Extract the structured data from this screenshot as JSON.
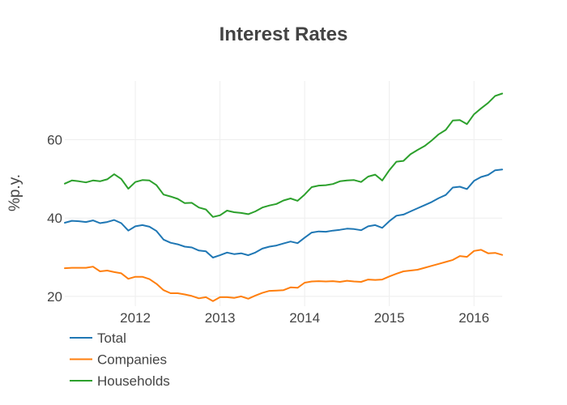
{
  "chart_data": {
    "type": "line",
    "title": "Interest Rates",
    "xlabel": "",
    "ylabel": "%p.y.",
    "x_tick_labels": [
      "2012",
      "2013",
      "2014",
      "2015",
      "2016"
    ],
    "y_tick_labels": [
      "20",
      "40",
      "60"
    ],
    "y_ticks": [
      20,
      40,
      60
    ],
    "ylim": [
      17.5,
      75
    ],
    "xlim": [
      "2011-03-01",
      "2016-05-01"
    ],
    "grid": true,
    "legend_position": "bottom-left",
    "x": [
      "2011-03",
      "2011-04",
      "2011-05",
      "2011-06",
      "2011-07",
      "2011-08",
      "2011-09",
      "2011-10",
      "2011-11",
      "2011-12",
      "2012-01",
      "2012-02",
      "2012-03",
      "2012-04",
      "2012-05",
      "2012-06",
      "2012-07",
      "2012-08",
      "2012-09",
      "2012-10",
      "2012-11",
      "2012-12",
      "2013-01",
      "2013-02",
      "2013-03",
      "2013-04",
      "2013-05",
      "2013-06",
      "2013-07",
      "2013-08",
      "2013-09",
      "2013-10",
      "2013-11",
      "2013-12",
      "2014-01",
      "2014-02",
      "2014-03",
      "2014-04",
      "2014-05",
      "2014-06",
      "2014-07",
      "2014-08",
      "2014-09",
      "2014-10",
      "2014-11",
      "2014-12",
      "2015-01",
      "2015-02",
      "2015-03",
      "2015-04",
      "2015-05",
      "2015-06",
      "2015-07",
      "2015-08",
      "2015-09",
      "2015-10",
      "2015-11",
      "2015-12",
      "2016-01",
      "2016-02",
      "2016-03",
      "2016-04",
      "2016-05"
    ],
    "series": [
      {
        "name": "Total",
        "color": "#1f77b4",
        "values": [
          38.8,
          39.3,
          39.2,
          39.0,
          39.4,
          38.7,
          39.0,
          39.5,
          38.7,
          36.8,
          37.9,
          38.2,
          37.8,
          36.7,
          34.5,
          33.7,
          33.3,
          32.7,
          32.5,
          31.7,
          31.5,
          29.9,
          30.5,
          31.2,
          30.8,
          31.0,
          30.5,
          31.2,
          32.2,
          32.7,
          33.0,
          33.5,
          34.0,
          33.6,
          35.0,
          36.3,
          36.6,
          36.5,
          36.8,
          37.0,
          37.3,
          37.2,
          36.9,
          37.9,
          38.2,
          37.5,
          39.2,
          40.6,
          40.9,
          41.7,
          42.5,
          43.3,
          44.1,
          45.1,
          45.9,
          47.8,
          48.0,
          47.4,
          49.5,
          50.5,
          51.0,
          52.2,
          52.4
        ]
      },
      {
        "name": "Companies",
        "color": "#ff7f0e",
        "values": [
          27.2,
          27.3,
          27.3,
          27.3,
          27.6,
          26.4,
          26.6,
          26.2,
          25.9,
          24.5,
          25.0,
          25.0,
          24.4,
          23.2,
          21.6,
          20.8,
          20.8,
          20.5,
          20.1,
          19.5,
          19.8,
          18.8,
          19.8,
          19.8,
          19.6,
          20.0,
          19.4,
          20.2,
          20.9,
          21.4,
          21.5,
          21.6,
          22.3,
          22.2,
          23.5,
          23.8,
          23.9,
          23.8,
          23.9,
          23.7,
          24.0,
          23.8,
          23.7,
          24.3,
          24.2,
          24.3,
          25.1,
          25.8,
          26.4,
          26.6,
          26.8,
          27.3,
          27.8,
          28.3,
          28.8,
          29.3,
          30.3,
          30.1,
          31.6,
          31.9,
          31.0,
          31.1,
          30.6
        ]
      },
      {
        "name": "Households",
        "color": "#2ca02c",
        "values": [
          48.8,
          49.6,
          49.4,
          49.1,
          49.6,
          49.4,
          49.9,
          51.2,
          50.0,
          47.5,
          49.2,
          49.7,
          49.6,
          48.4,
          46.0,
          45.5,
          44.9,
          43.8,
          43.9,
          42.7,
          42.2,
          40.3,
          40.7,
          41.9,
          41.5,
          41.3,
          41.0,
          41.7,
          42.7,
          43.2,
          43.6,
          44.5,
          45.0,
          44.4,
          46.0,
          47.9,
          48.3,
          48.4,
          48.7,
          49.4,
          49.6,
          49.7,
          49.2,
          50.6,
          51.1,
          49.6,
          52.2,
          54.4,
          54.6,
          56.3,
          57.4,
          58.4,
          59.8,
          61.4,
          62.5,
          64.9,
          65.0,
          64.0,
          66.5,
          68.0,
          69.4,
          71.2,
          71.8
        ]
      }
    ]
  }
}
